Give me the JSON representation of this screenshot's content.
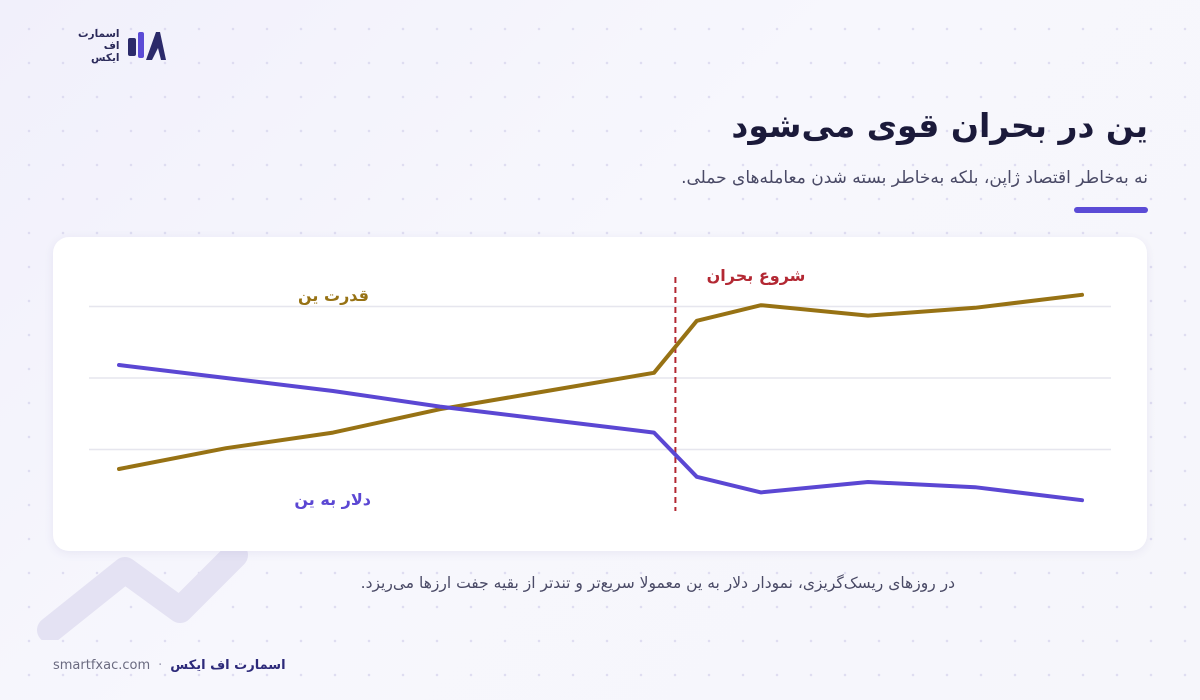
{
  "logo": {
    "line1": "اسمارت",
    "line2": "اف",
    "line3": "ایکس"
  },
  "header": {
    "title": "ین در بحران قوی می‌شود",
    "subtitle": "نه به‌خاطر اقتصاد ژاپن، بلکه به‌خاطر بسته شدن معامله‌های حملی."
  },
  "chart_data": {
    "type": "line",
    "grid": true,
    "x": [
      0,
      1,
      2,
      3,
      4,
      5,
      5.4,
      6,
      7,
      8,
      9
    ],
    "ylim": [
      0,
      10
    ],
    "series": [
      {
        "name": "قدرت ین",
        "color": "#977214",
        "values": [
          2.0,
          2.8,
          3.4,
          4.3,
          5.0,
          5.7,
          7.7,
          8.3,
          7.9,
          8.2,
          8.7
        ]
      },
      {
        "name": "دلار به ین",
        "color": "#5b47d3",
        "values": [
          6.0,
          5.5,
          5.0,
          4.4,
          3.9,
          3.4,
          1.7,
          1.1,
          1.5,
          1.3,
          0.8
        ]
      }
    ],
    "annotation": {
      "label": "شروع بحران",
      "x": 5.2,
      "color": "#b32833"
    }
  },
  "caption": "در روزهای ریسک‌گریزی، نمودار دلار به ین معمولا سریع‌تر و تندتر از بقیه جفت ارزها می‌ریزد.",
  "footer": {
    "brand": "اسمارت اف ایکس",
    "separator": "·",
    "url": "smartfxac.com"
  },
  "colors": {
    "accent": "#5b4bd6",
    "yen": "#977214",
    "usdjpy": "#5b47d3",
    "crisis": "#b32833"
  }
}
